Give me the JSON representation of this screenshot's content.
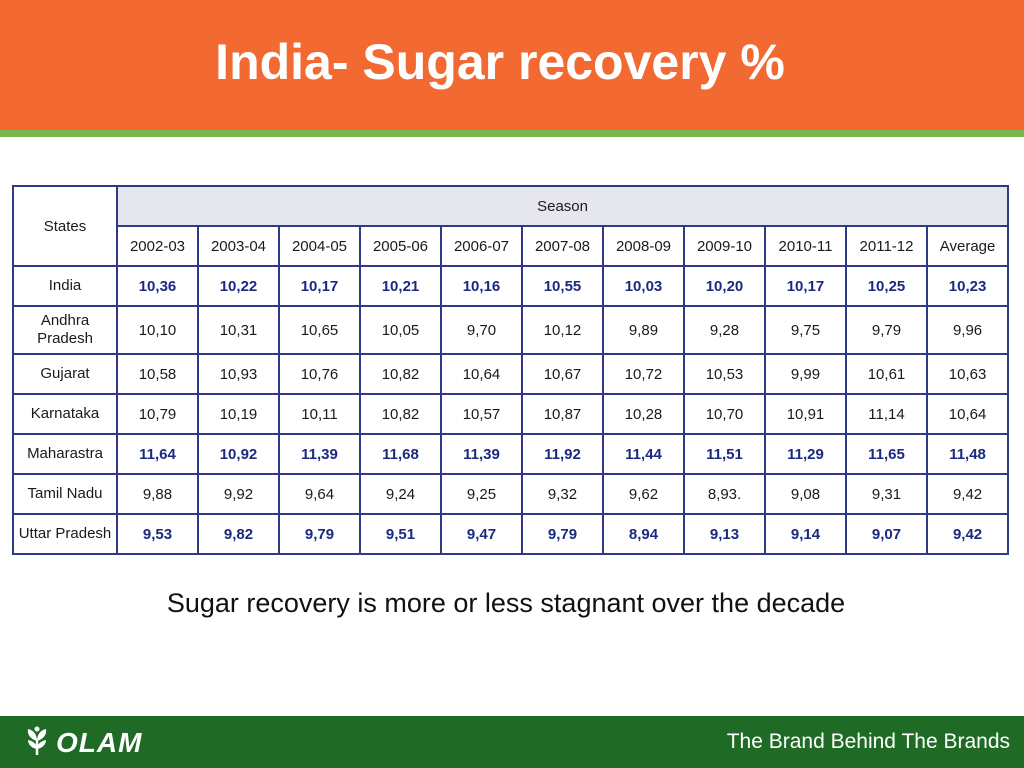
{
  "slide": {
    "title": "India- Sugar recovery %",
    "caption": "Sugar recovery is more or less stagnant over the decade"
  },
  "table": {
    "states_header": "States",
    "season_header": "Season",
    "columns": [
      "2002-03",
      "2003-04",
      "2004-05",
      "2005-06",
      "2006-07",
      "2007-08",
      "2008-09",
      "2009-10",
      "2010-11",
      "2011-12",
      "Average"
    ],
    "rows": [
      {
        "state": "India",
        "values": [
          "10,36",
          "10,22",
          "10,17",
          "10,21",
          "10,16",
          "10,55",
          "10,03",
          "10,20",
          "10,17",
          "10,25",
          "10,23"
        ]
      },
      {
        "state": "Andhra Pradesh",
        "values": [
          "10,10",
          "10,31",
          "10,65",
          "10,05",
          "9,70",
          "10,12",
          "9,89",
          "9,28",
          "9,75",
          "9,79",
          "9,96"
        ]
      },
      {
        "state": "Gujarat",
        "values": [
          "10,58",
          "10,93",
          "10,76",
          "10,82",
          "10,64",
          "10,67",
          "10,72",
          "10,53",
          "9,99",
          "10,61",
          "10,63"
        ]
      },
      {
        "state": "Karnataka",
        "values": [
          "10,79",
          "10,19",
          "10,11",
          "10,82",
          "10,57",
          "10,87",
          "10,28",
          "10,70",
          "10,91",
          "11,14",
          "10,64"
        ]
      },
      {
        "state": "Maharastra",
        "values": [
          "11,64",
          "10,92",
          "11,39",
          "11,68",
          "11,39",
          "11,92",
          "11,44",
          "11,51",
          "11,29",
          "11,65",
          "11,48"
        ]
      },
      {
        "state": "Tamil Nadu",
        "values": [
          "9,88",
          "9,92",
          "9,64",
          "9,24",
          "9,25",
          "9,32",
          "9,62",
          "8,93.",
          "9,08",
          "9,31",
          "9,42"
        ]
      },
      {
        "state": "Uttar Pradesh",
        "values": [
          "9,53",
          "9,82",
          "9,79",
          "9,51",
          "9,47",
          "9,79",
          "8,94",
          "9,13",
          "9,14",
          "9,07",
          "9,42"
        ]
      }
    ]
  },
  "footer": {
    "logo": "OLAM",
    "logo_icon": "olam-leaf-icon",
    "tagline": "The Brand Behind The Brands"
  },
  "colors": {
    "header": "#f26a31",
    "header_rule": "#7ab648",
    "footer": "#1f6b25",
    "table_border": "#2e3a86",
    "highlight_text": "#1b2a80"
  }
}
